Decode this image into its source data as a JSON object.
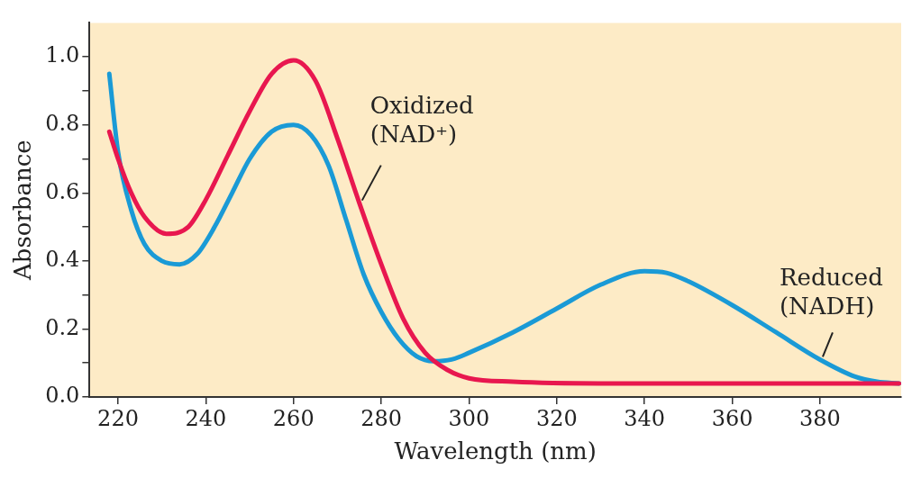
{
  "chart_data": {
    "type": "line",
    "xlabel": "Wavelength (nm)",
    "ylabel": "Absorbance",
    "xlim": [
      213.5,
      398.5
    ],
    "ylim": [
      0,
      1.1
    ],
    "xticks": [
      {
        "value": 220,
        "label": "220"
      },
      {
        "value": 240,
        "label": "240"
      },
      {
        "value": 260,
        "label": "260"
      },
      {
        "value": 280,
        "label": "280"
      },
      {
        "value": 300,
        "label": "300"
      },
      {
        "value": 320,
        "label": "320"
      },
      {
        "value": 340,
        "label": "340"
      },
      {
        "value": 360,
        "label": "360"
      },
      {
        "value": 380,
        "label": "380"
      }
    ],
    "yticks": [
      {
        "value": 0,
        "label": "0.0"
      },
      {
        "value": 0.1,
        "label": null
      },
      {
        "value": 0.2,
        "label": "0.2"
      },
      {
        "value": 0.3,
        "label": null
      },
      {
        "value": 0.4,
        "label": "0.4"
      },
      {
        "value": 0.5,
        "label": null
      },
      {
        "value": 0.6,
        "label": "0.6"
      },
      {
        "value": 0.7,
        "label": null
      },
      {
        "value": 0.8,
        "label": "0.8"
      },
      {
        "value": 0.9,
        "label": null
      },
      {
        "value": 1.0,
        "label": "1.0"
      }
    ],
    "grid": false,
    "legend": false,
    "marker": "none",
    "line_style": "solid",
    "series": [
      {
        "name": "Oxidized (NAD⁺)",
        "color": "#e8174f",
        "x": [
          218,
          220,
          223,
          226,
          231,
          236,
          240,
          245,
          250,
          255,
          260,
          265,
          270,
          275,
          280,
          285,
          290,
          295,
          300,
          310,
          330,
          360,
          398
        ],
        "values": [
          0.78,
          0.7,
          0.6,
          0.53,
          0.48,
          0.5,
          0.58,
          0.71,
          0.84,
          0.95,
          0.99,
          0.93,
          0.76,
          0.57,
          0.39,
          0.23,
          0.13,
          0.08,
          0.055,
          0.045,
          0.04,
          0.04,
          0.04
        ]
      },
      {
        "name": "Reduced (NADH)",
        "color": "#1a9ad6",
        "x": [
          218,
          220,
          223,
          226,
          230,
          234,
          238,
          242,
          246,
          250,
          255,
          260,
          264,
          268,
          272,
          276,
          280,
          284,
          288,
          292,
          296,
          300,
          310,
          320,
          330,
          340,
          345,
          350,
          360,
          370,
          380,
          388,
          393,
          398
        ],
        "values": [
          0.95,
          0.72,
          0.55,
          0.45,
          0.4,
          0.39,
          0.42,
          0.5,
          0.6,
          0.7,
          0.78,
          0.8,
          0.77,
          0.68,
          0.52,
          0.36,
          0.25,
          0.17,
          0.12,
          0.105,
          0.11,
          0.13,
          0.19,
          0.26,
          0.33,
          0.37,
          0.365,
          0.34,
          0.27,
          0.19,
          0.11,
          0.06,
          0.045,
          0.04
        ]
      }
    ]
  }
}
